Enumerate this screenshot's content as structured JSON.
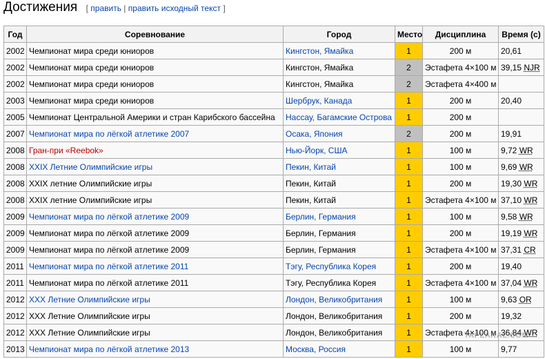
{
  "header": {
    "title": "Достижения",
    "bracket_open": "[",
    "edit": "править",
    "separator": "|",
    "edit_source": "править исходный текст",
    "bracket_close": "]"
  },
  "table": {
    "columns": [
      "Год",
      "Соревнование",
      "Город",
      "Место",
      "Дисциплина",
      "Время (с)"
    ],
    "medal_colors": [
      "#ffcc00",
      "#c0c0c0"
    ],
    "link_color": "#0645ad",
    "new_link_color": "#ba0000",
    "rows": [
      {
        "year": 2002,
        "event": "Чемпионат мира среди юниоров",
        "city": "Кингстон, Ямайка",
        "city_link": true,
        "place": 1,
        "discipline": "200 м",
        "time": "20,61"
      },
      {
        "year": 2002,
        "event": "Чемпионат мира среди юниоров",
        "city": "Кингстон, Ямайка",
        "place": 2,
        "discipline": "Эстафета 4×100 м",
        "time": "39,15",
        "record": "NJR"
      },
      {
        "year": 2002,
        "event": "Чемпионат мира среди юниоров",
        "city": "Кингстон, Ямайка",
        "place": 2,
        "discipline": "Эстафета 4×400 м"
      },
      {
        "year": 2003,
        "event": "Чемпионат мира среди юниоров",
        "city": "Шербрук, Канада",
        "city_link": true,
        "place": 1,
        "discipline": "200 м",
        "time": "20,40"
      },
      {
        "year": 2005,
        "event": "Чемпионат Центральной Америки и стран Карибского бассейна",
        "city": "Нассау, Багамские Острова",
        "city_link": true,
        "place": 1,
        "discipline": "200 м"
      },
      {
        "year": 2007,
        "event": "Чемпионат мира по лёгкой атлетике 2007",
        "event_link": "link",
        "city": "Осака, Япония",
        "city_link": true,
        "place": 2,
        "discipline": "200 м",
        "time": "19,91"
      },
      {
        "year": 2008,
        "event": "Гран-при «Reebok»",
        "event_link": "new",
        "city": "Нью-Йорк, США",
        "city_link": true,
        "place": 1,
        "discipline": "100 м",
        "time": "9,72",
        "record": "WR"
      },
      {
        "year": 2008,
        "event": "XXIX Летние Олимпийские игры",
        "event_link": "link",
        "city": "Пекин, Китай",
        "city_link": true,
        "place": 1,
        "discipline": "100 м",
        "time": "9,69",
        "record": "WR"
      },
      {
        "year": 2008,
        "event": "XXIX летние Олимпийские игры",
        "city": "Пекин, Китай",
        "place": 1,
        "discipline": "200 м",
        "time": "19,30",
        "record": "WR"
      },
      {
        "year": 2008,
        "event": "XXIX летние Олимпийские игры",
        "city": "Пекин, Китай",
        "place": 1,
        "discipline": "Эстафета 4×100 м",
        "time": "37,10",
        "record": "WR"
      },
      {
        "year": 2009,
        "event": "Чемпионат мира по лёгкой атлетике 2009",
        "event_link": "link",
        "city": "Берлин, Германия",
        "city_link": true,
        "place": 1,
        "discipline": "100 м",
        "time": "9,58",
        "record": "WR"
      },
      {
        "year": 2009,
        "event": "Чемпионат мира по лёгкой атлетике 2009",
        "city": "Берлин, Германия",
        "place": 1,
        "discipline": "200 м",
        "time": "19,19",
        "record": "WR"
      },
      {
        "year": 2009,
        "event": "Чемпионат мира по лёгкой атлетике 2009",
        "city": "Берлин, Германия",
        "place": 1,
        "discipline": "Эстафета 4×100 м",
        "time": "37,31",
        "record": "CR"
      },
      {
        "year": 2011,
        "event": "Чемпионат мира по лёгкой атлетике 2011",
        "event_link": "link",
        "city": "Тэгу, Республика Корея",
        "city_link": true,
        "place": 1,
        "discipline": "200 м",
        "time": "19,40"
      },
      {
        "year": 2011,
        "event": "Чемпионат мира по лёгкой атлетике 2011",
        "city": "Тэгу, Республика Корея",
        "place": 1,
        "discipline": "Эстафета 4×100 м",
        "time": "37,04",
        "record": "WR"
      },
      {
        "year": 2012,
        "event": "XXX Летние Олимпийские игры",
        "event_link": "link",
        "city": "Лондон, Великобритания",
        "city_link": true,
        "place": 1,
        "discipline": "100 м",
        "time": "9,63",
        "record": "OR"
      },
      {
        "year": 2012,
        "event": "XXX Летние Олимпийские игры",
        "city": "Лондон, Великобритания",
        "place": 1,
        "discipline": "200 м",
        "time": "19,32"
      },
      {
        "year": 2012,
        "event": "XXX Летние Олимпийские игры",
        "city": "Лондон, Великобритания",
        "place": 1,
        "discipline": "Эстафета 4×100 м",
        "time": "36,84",
        "record": "WR"
      },
      {
        "year": 2013,
        "event": "Чемпионат мира по лёгкой атлетике 2013",
        "event_link": "link",
        "city": "Москва, Россия",
        "city_link": true,
        "place": 1,
        "discipline": "100 м",
        "time": "9,77"
      }
    ]
  },
  "watermark": "YAPLAKAL.COM"
}
